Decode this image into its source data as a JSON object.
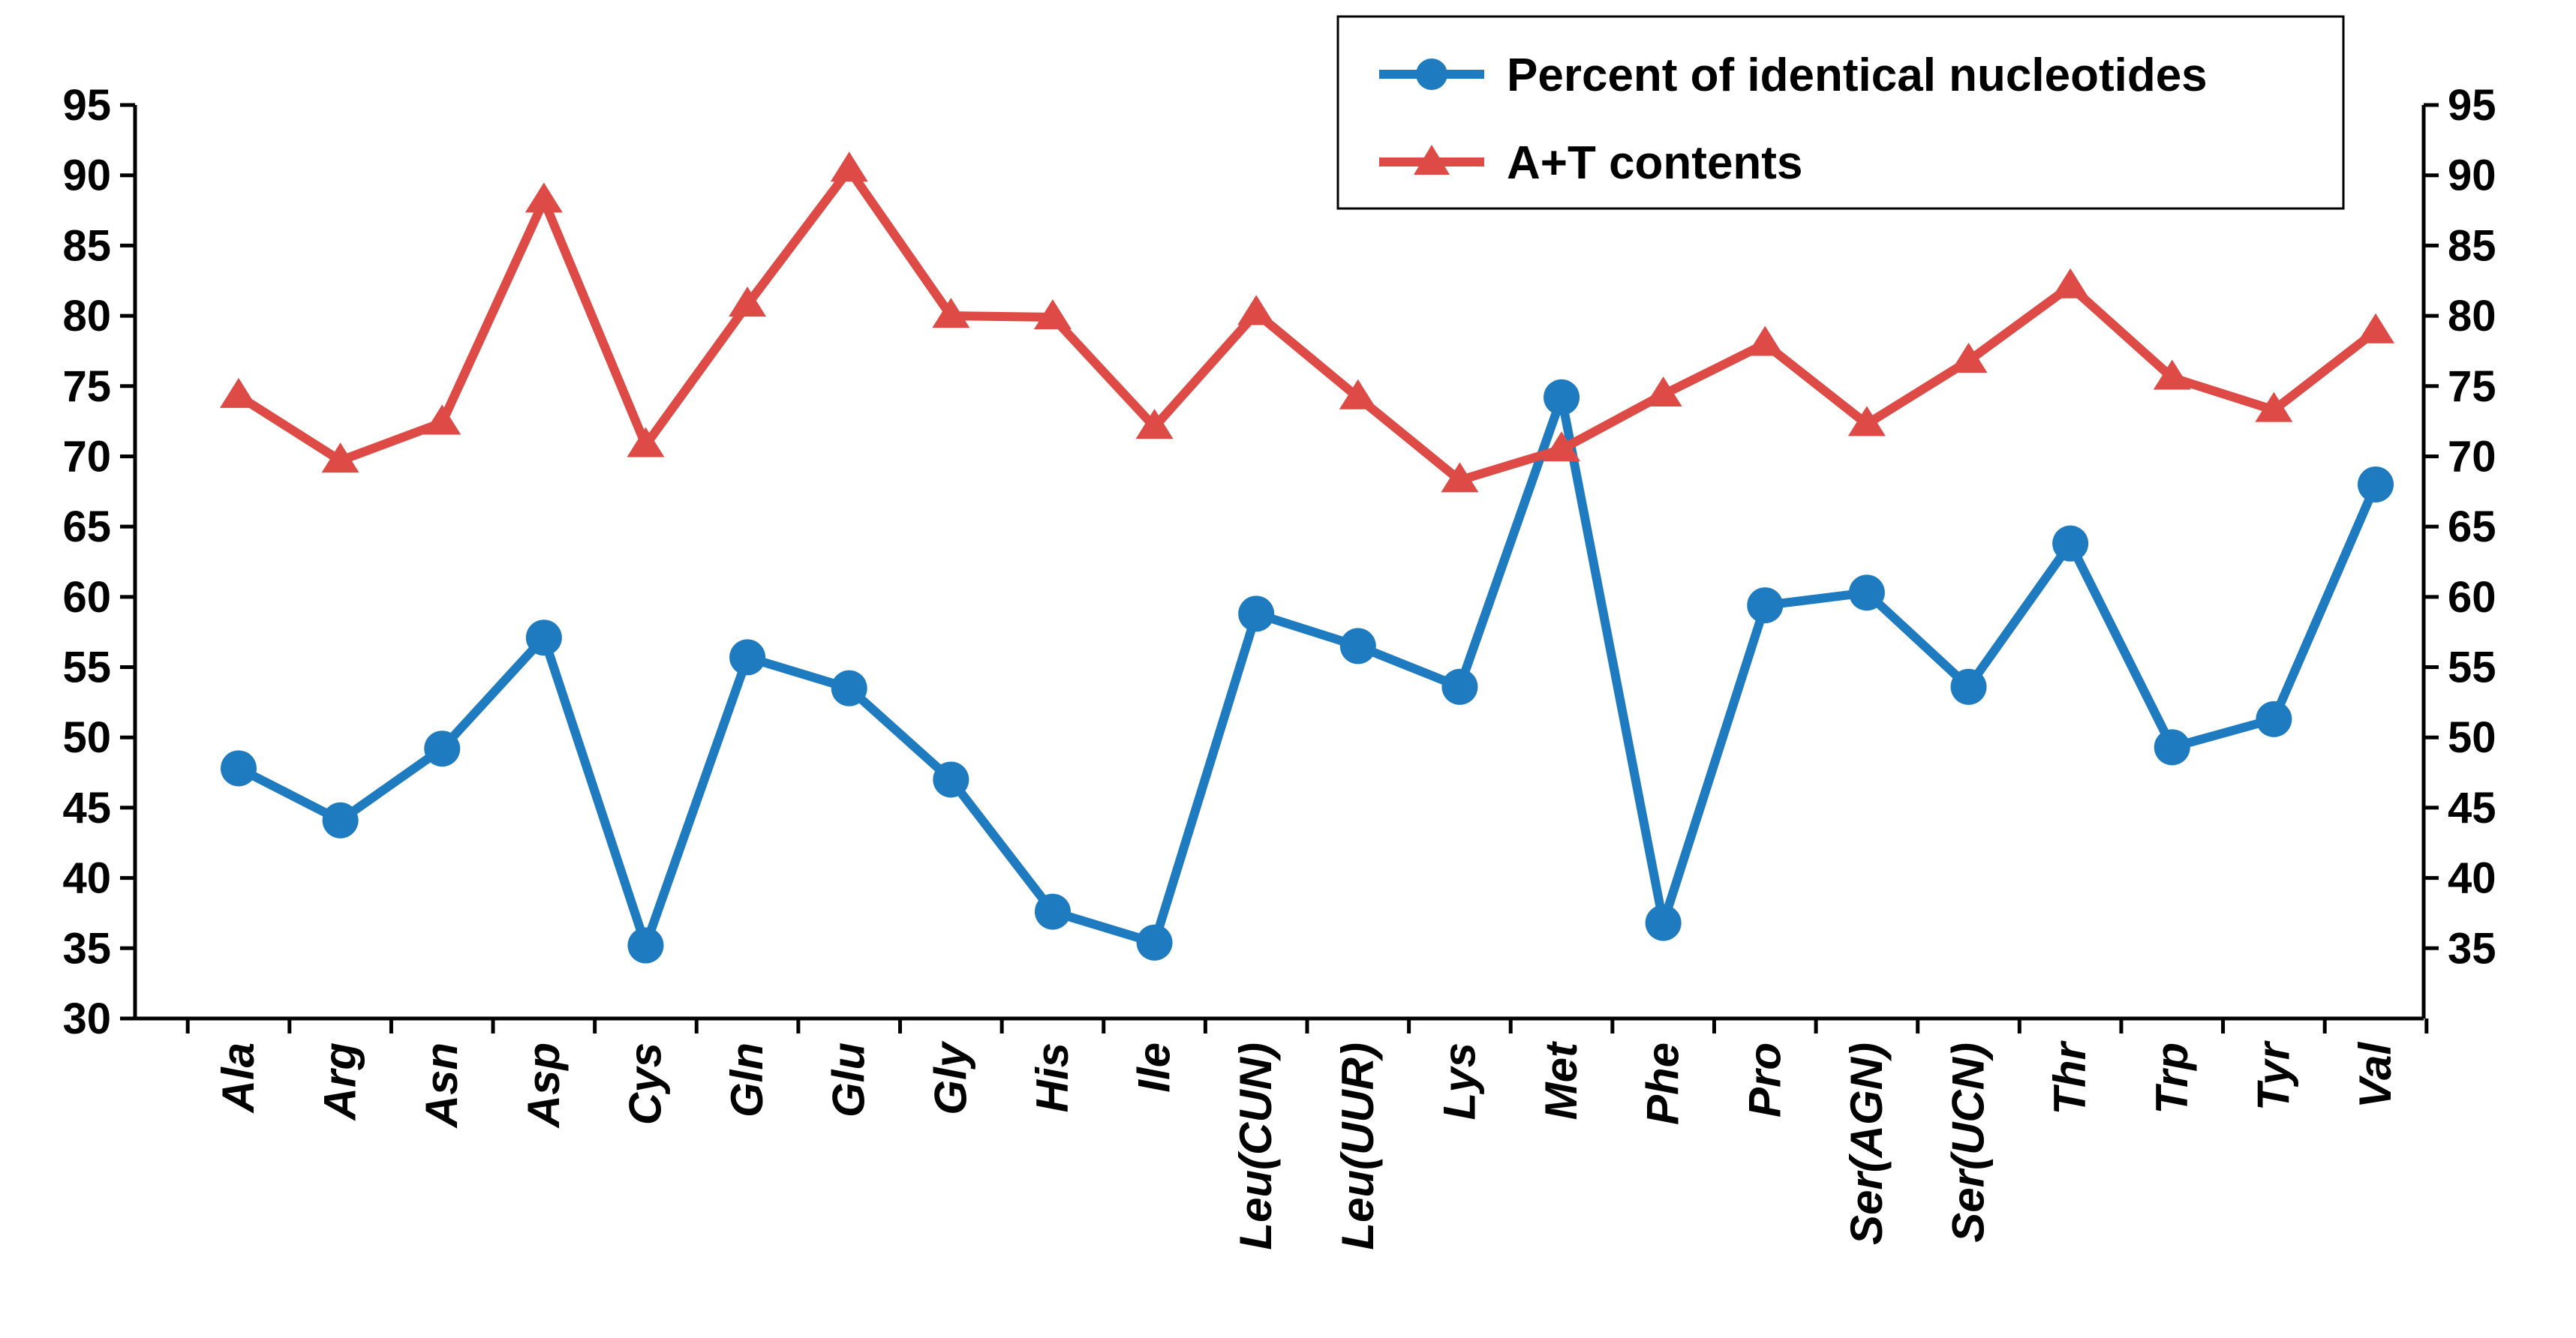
{
  "chart_data": {
    "type": "line",
    "title": "",
    "xlabel": "",
    "ylabel": "",
    "ylim": [
      30,
      95
    ],
    "y_ticks": [
      30,
      35,
      40,
      45,
      50,
      55,
      60,
      65,
      70,
      75,
      80,
      85,
      90,
      95
    ],
    "y2_ticks": [
      35,
      40,
      45,
      50,
      55,
      60,
      65,
      70,
      75,
      80,
      85,
      90,
      95
    ],
    "categories": [
      "Ala",
      "Arg",
      "Asn",
      "Asp",
      "Cys",
      "Gln",
      "Glu",
      "Gly",
      "His",
      "Ile",
      "Leu(CUN)",
      "Leu(UUR)",
      "Lys",
      "Met",
      "Phe",
      "Pro",
      "Ser(AGN)",
      "Ser(UCN)",
      "Thr",
      "Trp",
      "Tyr",
      "Val"
    ],
    "series": [
      {
        "name": "Percent of identical nucleotides",
        "color": "#1f7bbf",
        "marker": "circle",
        "values": [
          47.8,
          44.1,
          49.2,
          57.1,
          35.2,
          55.7,
          53.5,
          47.0,
          37.6,
          35.4,
          58.8,
          56.5,
          53.6,
          74.2,
          36.8,
          59.4,
          60.3,
          53.6,
          63.8,
          49.3,
          51.3,
          68.0
        ]
      },
      {
        "name": "A+T contents",
        "color": "#de4a45",
        "marker": "triangle",
        "values": [
          74.3,
          69.7,
          72.4,
          88.2,
          70.8,
          80.8,
          90.4,
          80.0,
          79.9,
          72.1,
          80.2,
          74.2,
          68.3,
          70.5,
          74.4,
          78.0,
          72.3,
          76.8,
          82.1,
          75.6,
          73.3,
          78.9
        ]
      }
    ],
    "legend_position": "top-right"
  }
}
